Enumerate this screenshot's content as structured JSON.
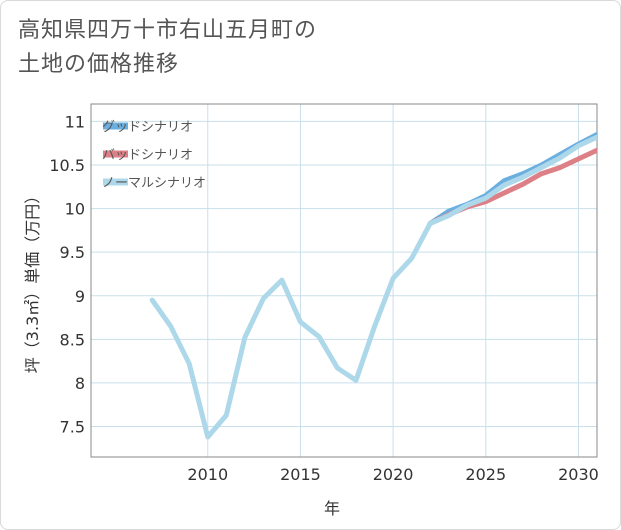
{
  "title": {
    "line1": "高知県四万十市右山五月町の",
    "line2": "土地の価格推移"
  },
  "chart_data": {
    "type": "line",
    "xlabel": "年",
    "ylabel": "坪（3.3㎡）単価（万円）",
    "xlim": [
      2003.7,
      2031.0
    ],
    "ylim": [
      7.15,
      11.2
    ],
    "x_ticks": [
      2010,
      2015,
      2020,
      2025,
      2030
    ],
    "y_ticks": [
      7.5,
      8,
      8.5,
      9,
      9.5,
      10,
      10.5,
      11
    ],
    "x_tick_labels": [
      "2010",
      "2015",
      "2020",
      "2025",
      "2030"
    ],
    "y_tick_labels": [
      "7.5",
      "8",
      "8.5",
      "9",
      "9.5",
      "10",
      "10.5",
      "11"
    ],
    "legend_position": "top-left",
    "series": [
      {
        "name": "グッドシナリオ",
        "color": "#6aafe0",
        "x": [
          2022,
          2023,
          2024,
          2025,
          2026,
          2027,
          2028,
          2029,
          2030,
          2031
        ],
        "values": [
          9.83,
          9.97,
          10.05,
          10.15,
          10.32,
          10.4,
          10.5,
          10.62,
          10.74,
          10.85
        ]
      },
      {
        "name": "バッドシナリオ",
        "color": "#dc7f86",
        "x": [
          2022,
          2023,
          2024,
          2025,
          2026,
          2027,
          2028,
          2029,
          2030,
          2031
        ],
        "values": [
          9.83,
          9.93,
          10.02,
          10.08,
          10.18,
          10.28,
          10.4,
          10.47,
          10.57,
          10.67
        ]
      },
      {
        "name": "ノーマルシナリオ",
        "color": "#add8ea",
        "x": [
          2007,
          2008,
          2009,
          2010,
          2011,
          2012,
          2013,
          2014,
          2015,
          2016,
          2017,
          2018,
          2019,
          2020,
          2021,
          2022,
          2023,
          2024,
          2025,
          2026,
          2027,
          2028,
          2029,
          2030,
          2031
        ],
        "values": [
          8.95,
          8.65,
          8.22,
          7.38,
          7.63,
          8.52,
          8.97,
          9.18,
          8.7,
          8.53,
          8.17,
          8.03,
          8.65,
          9.2,
          9.43,
          9.83,
          9.92,
          10.04,
          10.12,
          10.27,
          10.36,
          10.47,
          10.58,
          10.72,
          10.82
        ]
      }
    ]
  }
}
